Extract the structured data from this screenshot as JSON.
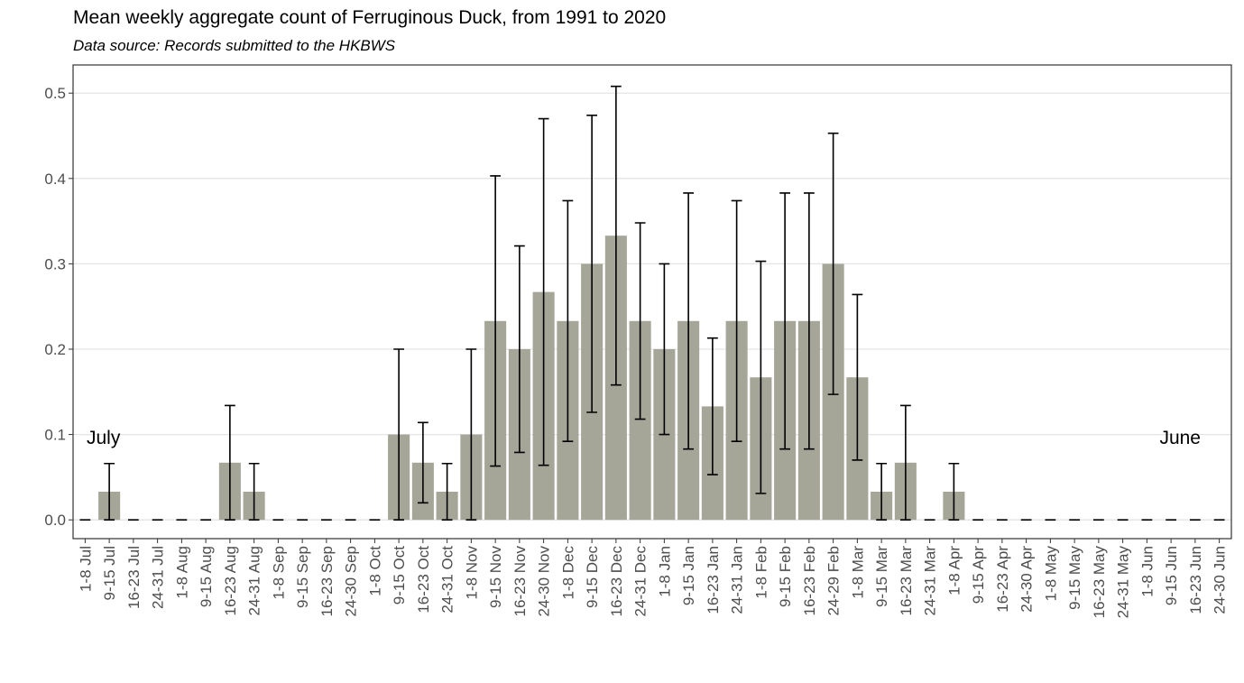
{
  "chart_data": {
    "type": "bar",
    "title": "Mean weekly aggregate count of Ferruginous Duck, from 1991 to 2020",
    "subtitle": "Data source: Records submitted to the HKBWS",
    "annotations": [
      "July",
      "June"
    ],
    "categories": [
      "1-8 Jul",
      "9-15 Jul",
      "16-23 Jul",
      "24-31 Jul",
      "1-8 Aug",
      "9-15 Aug",
      "16-23 Aug",
      "24-31 Aug",
      "1-8 Sep",
      "9-15 Sep",
      "16-23 Sep",
      "24-30 Sep",
      "1-8 Oct",
      "9-15 Oct",
      "16-23 Oct",
      "24-31 Oct",
      "1-8 Nov",
      "9-15 Nov",
      "16-23 Nov",
      "24-30 Nov",
      "1-8 Dec",
      "9-15 Dec",
      "16-23 Dec",
      "24-31 Dec",
      "1-8 Jan",
      "9-15 Jan",
      "16-23 Jan",
      "24-31 Jan",
      "1-8 Feb",
      "9-15 Feb",
      "16-23 Feb",
      "24-29 Feb",
      "1-8 Mar",
      "9-15 Mar",
      "16-23 Mar",
      "24-31 Mar",
      "1-8 Apr",
      "9-15 Apr",
      "16-23 Apr",
      "24-30 Apr",
      "1-8 May",
      "9-15 May",
      "16-23 May",
      "24-31 May",
      "1-8 Jun",
      "9-15 Jun",
      "16-23 Jun",
      "24-30 Jun"
    ],
    "values": [
      0,
      0.033,
      0,
      0,
      0,
      0,
      0.067,
      0.033,
      0,
      0,
      0,
      0,
      0,
      0.1,
      0.067,
      0.033,
      0.1,
      0.233,
      0.2,
      0.267,
      0.233,
      0.3,
      0.333,
      0.233,
      0.2,
      0.233,
      0.133,
      0.233,
      0.167,
      0.233,
      0.233,
      0.3,
      0.167,
      0.033,
      0.067,
      0,
      0.033,
      0,
      0,
      0,
      0,
      0,
      0,
      0,
      0,
      0,
      0,
      0
    ],
    "errors": [
      0,
      0.033,
      0,
      0,
      0,
      0,
      0.067,
      0.033,
      0,
      0,
      0,
      0,
      0,
      0.1,
      0.047,
      0.033,
      0.1,
      0.17,
      0.121,
      0.203,
      0.141,
      0.174,
      0.175,
      0.115,
      0.1,
      0.15,
      0.08,
      0.141,
      0.136,
      0.15,
      0.15,
      0.153,
      0.097,
      0.033,
      0.067,
      0,
      0.033,
      0,
      0,
      0,
      0,
      0,
      0,
      0,
      0,
      0,
      0,
      0
    ],
    "color": "#a5a698",
    "error_color": "#000000",
    "ylim": [
      -0.022,
      0.533
    ],
    "yticks": [
      {
        "value": 0,
        "label": "0.0"
      },
      0.1,
      0.2,
      0.3,
      0.4,
      0.5
    ],
    "grid": true
  }
}
